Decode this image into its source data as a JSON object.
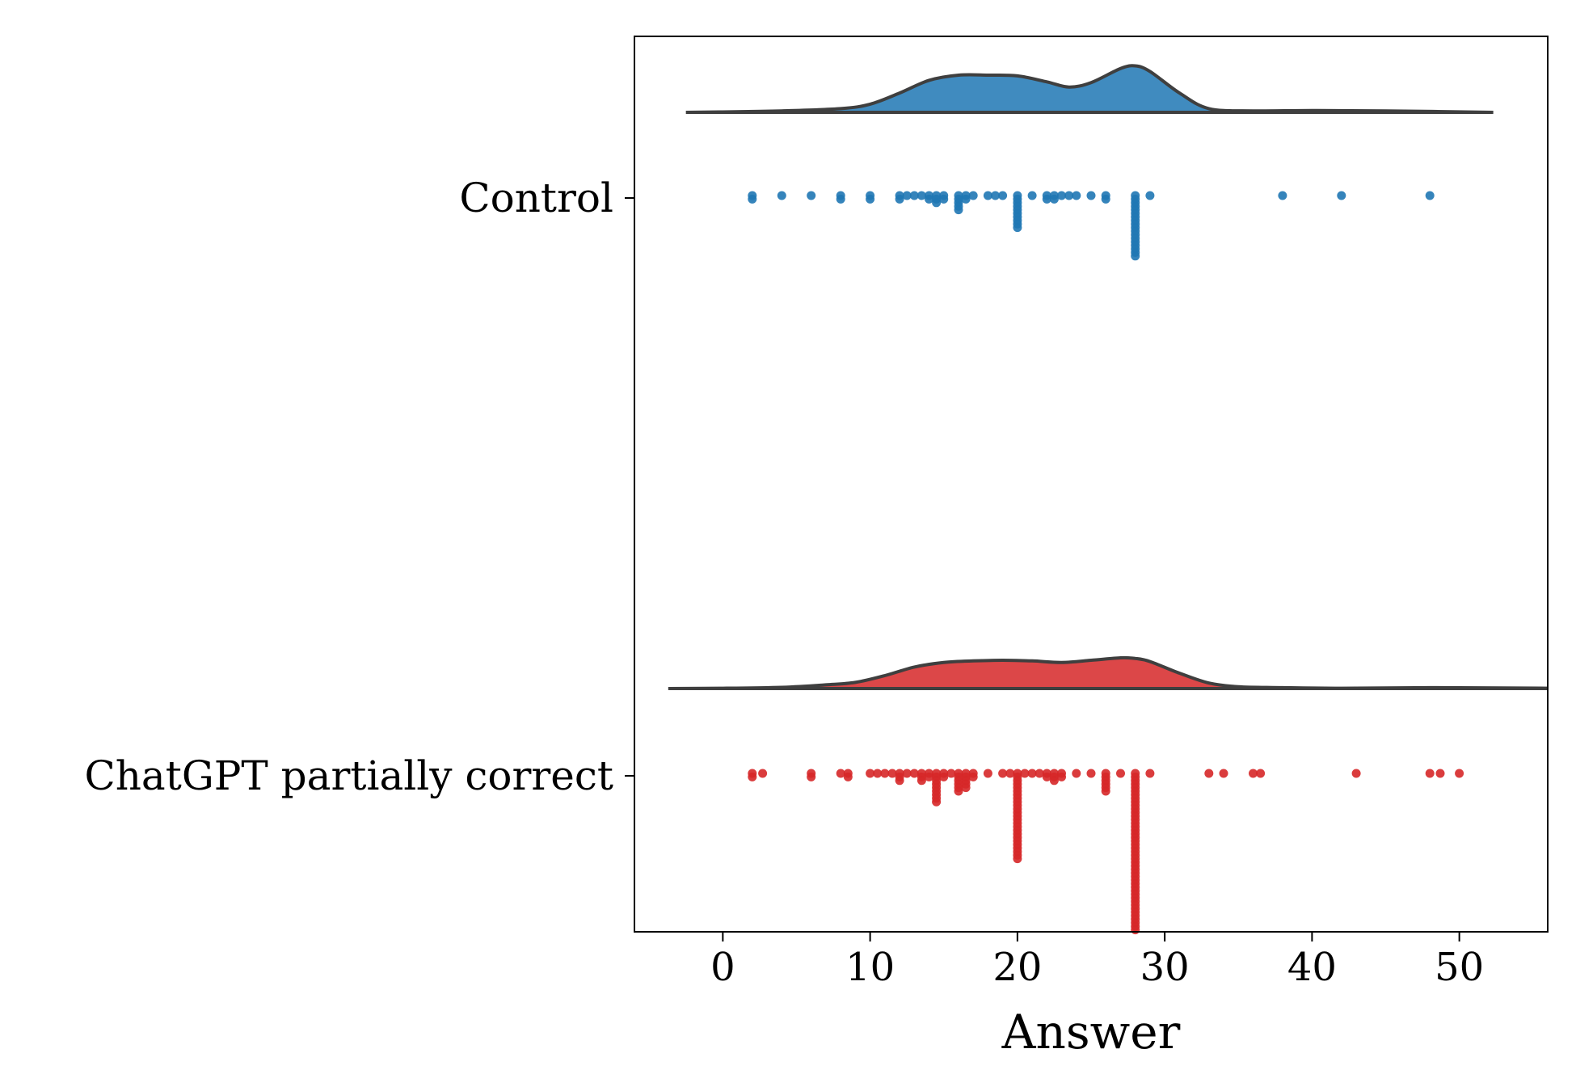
{
  "chart_data": {
    "type": "raincloud",
    "title": "",
    "xlabel": "Answer",
    "ylabel": "",
    "xlim": [
      -6,
      56
    ],
    "xticks": [
      0,
      10,
      20,
      30,
      40,
      50
    ],
    "xtick_labels": [
      "0",
      "10",
      "20",
      "30",
      "40",
      "50"
    ],
    "grid": false,
    "categories": [
      "Control",
      "ChatGPT partially correct"
    ],
    "series": [
      {
        "category": "Control",
        "color": "#1f77b4",
        "density": {
          "x": [
            -2.5,
            0,
            4,
            8,
            10,
            12,
            14,
            16,
            18,
            20,
            22,
            23.5,
            25,
            27,
            28,
            29,
            31,
            33,
            36,
            40,
            45,
            52.3
          ],
          "y": [
            0,
            0.01,
            0.04,
            0.1,
            0.22,
            0.52,
            0.86,
            1.0,
            1.0,
            0.98,
            0.82,
            0.68,
            0.8,
            1.18,
            1.25,
            1.1,
            0.52,
            0.1,
            0.04,
            0.05,
            0.04,
            0
          ]
        },
        "points": [
          {
            "x": 2,
            "count": 2
          },
          {
            "x": 4,
            "count": 1
          },
          {
            "x": 6,
            "count": 1
          },
          {
            "x": 8,
            "count": 2
          },
          {
            "x": 10,
            "count": 2
          },
          {
            "x": 12,
            "count": 2
          },
          {
            "x": 12.5,
            "count": 1
          },
          {
            "x": 13,
            "count": 1
          },
          {
            "x": 13.5,
            "count": 1
          },
          {
            "x": 14,
            "count": 2
          },
          {
            "x": 14.5,
            "count": 3
          },
          {
            "x": 15,
            "count": 2
          },
          {
            "x": 16,
            "count": 5
          },
          {
            "x": 16.5,
            "count": 2
          },
          {
            "x": 17,
            "count": 1
          },
          {
            "x": 18,
            "count": 1
          },
          {
            "x": 18.5,
            "count": 1
          },
          {
            "x": 19,
            "count": 1
          },
          {
            "x": 20,
            "count": 10
          },
          {
            "x": 21,
            "count": 1
          },
          {
            "x": 22,
            "count": 2
          },
          {
            "x": 22.5,
            "count": 2
          },
          {
            "x": 23,
            "count": 1
          },
          {
            "x": 23.5,
            "count": 1
          },
          {
            "x": 24,
            "count": 1
          },
          {
            "x": 25,
            "count": 1
          },
          {
            "x": 26,
            "count": 2
          },
          {
            "x": 28,
            "count": 18
          },
          {
            "x": 29,
            "count": 1
          },
          {
            "x": 38,
            "count": 1
          },
          {
            "x": 42,
            "count": 1
          },
          {
            "x": 48,
            "count": 1
          }
        ]
      },
      {
        "category": "ChatGPT partially correct",
        "color": "#d62728",
        "density": {
          "x": [
            -3.7,
            0,
            4,
            7,
            9,
            11,
            13,
            15,
            17,
            19,
            21,
            23,
            25,
            27,
            28,
            29,
            31,
            33,
            35,
            38,
            42,
            48,
            56
          ],
          "y": [
            0,
            0.01,
            0.04,
            0.12,
            0.2,
            0.42,
            0.7,
            0.85,
            0.9,
            0.92,
            0.9,
            0.85,
            0.92,
            1.0,
            0.98,
            0.88,
            0.5,
            0.18,
            0.06,
            0.03,
            0.01,
            0.03,
            0.01
          ]
        },
        "points": [
          {
            "x": 2,
            "count": 2
          },
          {
            "x": 2.7,
            "count": 1
          },
          {
            "x": 6,
            "count": 2
          },
          {
            "x": 8,
            "count": 1
          },
          {
            "x": 8.5,
            "count": 2
          },
          {
            "x": 10,
            "count": 1
          },
          {
            "x": 10.5,
            "count": 1
          },
          {
            "x": 11,
            "count": 1
          },
          {
            "x": 11.5,
            "count": 1
          },
          {
            "x": 12,
            "count": 3
          },
          {
            "x": 12.5,
            "count": 1
          },
          {
            "x": 13,
            "count": 1
          },
          {
            "x": 13.5,
            "count": 3
          },
          {
            "x": 14,
            "count": 2
          },
          {
            "x": 14.5,
            "count": 9
          },
          {
            "x": 15,
            "count": 2
          },
          {
            "x": 15.5,
            "count": 1
          },
          {
            "x": 16,
            "count": 6
          },
          {
            "x": 16.5,
            "count": 5
          },
          {
            "x": 17,
            "count": 2
          },
          {
            "x": 18,
            "count": 1
          },
          {
            "x": 19,
            "count": 1
          },
          {
            "x": 19.5,
            "count": 1
          },
          {
            "x": 20,
            "count": 25
          },
          {
            "x": 20.5,
            "count": 1
          },
          {
            "x": 21,
            "count": 1
          },
          {
            "x": 21.5,
            "count": 1
          },
          {
            "x": 22,
            "count": 2
          },
          {
            "x": 22.5,
            "count": 3
          },
          {
            "x": 23,
            "count": 2
          },
          {
            "x": 24,
            "count": 1
          },
          {
            "x": 25,
            "count": 1
          },
          {
            "x": 26,
            "count": 6
          },
          {
            "x": 27,
            "count": 1
          },
          {
            "x": 28,
            "count": 45
          },
          {
            "x": 29,
            "count": 1
          },
          {
            "x": 33,
            "count": 1
          },
          {
            "x": 34,
            "count": 1
          },
          {
            "x": 36,
            "count": 1
          },
          {
            "x": 36.5,
            "count": 1
          },
          {
            "x": 43,
            "count": 1
          },
          {
            "x": 48,
            "count": 1
          },
          {
            "x": 48.7,
            "count": 1
          },
          {
            "x": 50,
            "count": 1
          }
        ]
      }
    ]
  }
}
